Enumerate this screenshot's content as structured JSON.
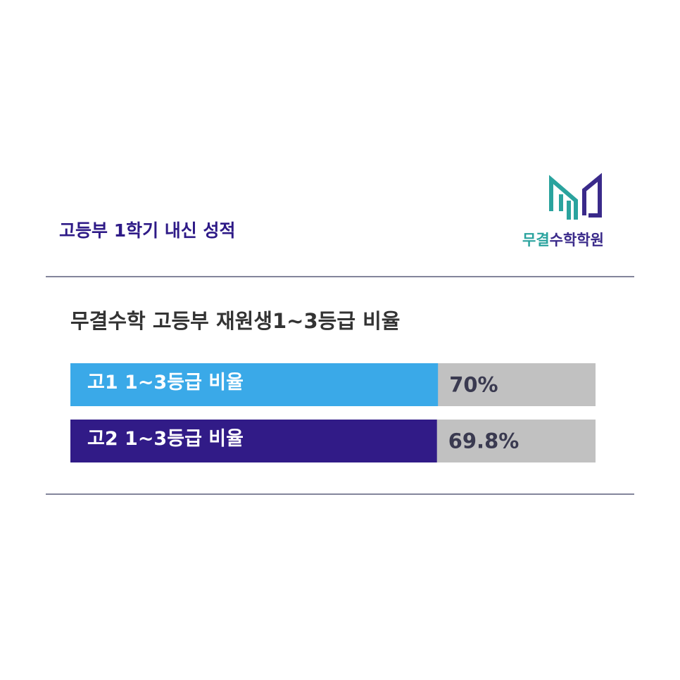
{
  "header": {
    "title": "고등부 1학기 내신 성적",
    "logo": [
      "무결",
      "수학학원"
    ]
  },
  "chart_data": {
    "type": "hbar",
    "title": "무결수학 고등부 재원생1~3등급 비율",
    "categories": [
      "고1 1~3등급 비율",
      "고2 1~3등급 비율"
    ],
    "values": [
      70,
      69.8
    ],
    "value_labels": [
      "70%",
      "69.8%"
    ],
    "colors": [
      "#3aa9e8",
      "#311b87"
    ],
    "track_color": "#c1c1c1",
    "xlim": [
      0,
      100
    ]
  }
}
